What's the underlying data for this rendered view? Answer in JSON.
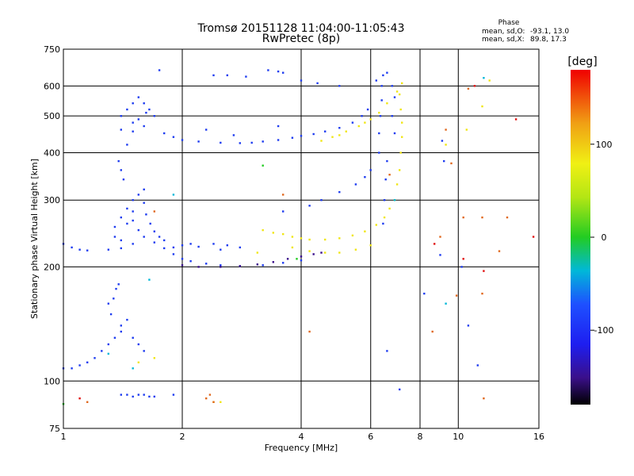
{
  "chart_data": {
    "type": "scatter",
    "title": "Tromsø 20151128 11:04:00-11:05:43",
    "subtitle": "RwPretec (8p)",
    "phase_info": {
      "heading": "Phase",
      "line_o_label": "mean, sd,O:",
      "line_o_values": "-93.1, 13.0",
      "line_x_label": "mean, sd,X:",
      "line_x_values": "89.8, 17.3"
    },
    "xlabel": "Frequency [MHz]",
    "ylabel": "Stationary phase Virtual Height [km]",
    "x_scale": "log",
    "y_scale": "log",
    "xlim": [
      1,
      16
    ],
    "ylim": [
      75,
      750
    ],
    "x_ticks": [
      1,
      2,
      4,
      6,
      8,
      10,
      16
    ],
    "x_tick_labels": [
      "1",
      "2",
      "4",
      "6",
      "8",
      "10",
      "16"
    ],
    "y_ticks": [
      75,
      100,
      200,
      300,
      400,
      500,
      600,
      750
    ],
    "y_tick_labels": [
      "75",
      "100",
      "200",
      "300",
      "400",
      "500",
      "600",
      "750"
    ],
    "grid": true,
    "colorbar": {
      "label": "[deg]",
      "range": [
        -180,
        180
      ],
      "ticks": [
        100,
        0,
        -100
      ],
      "tick_labels": [
        "100",
        "0",
        "-100"
      ]
    },
    "series": [
      {
        "color": "#1e3cf0",
        "phase_deg": -100,
        "points": [
          [
            1.0,
            230
          ],
          [
            1.05,
            225
          ],
          [
            1.1,
            222
          ],
          [
            1.15,
            221
          ],
          [
            1.3,
            222
          ],
          [
            1.4,
            224
          ],
          [
            1.5,
            230
          ],
          [
            1.6,
            240
          ],
          [
            1.7,
            232
          ],
          [
            1.8,
            224
          ],
          [
            1.9,
            216
          ],
          [
            2.0,
            210
          ],
          [
            2.1,
            207
          ],
          [
            2.3,
            204
          ],
          [
            2.5,
            202
          ],
          [
            2.8,
            201
          ],
          [
            3.2,
            202
          ],
          [
            3.6,
            205
          ],
          [
            4.0,
            208
          ],
          [
            1.35,
            240
          ],
          [
            1.35,
            255
          ],
          [
            1.4,
            270
          ],
          [
            1.45,
            285
          ],
          [
            1.5,
            300
          ],
          [
            1.55,
            310
          ],
          [
            1.6,
            295
          ],
          [
            1.62,
            275
          ],
          [
            1.66,
            260
          ],
          [
            1.7,
            248
          ],
          [
            1.75,
            240
          ],
          [
            1.8,
            235
          ],
          [
            1.4,
            235
          ],
          [
            1.5,
            265
          ],
          [
            1.55,
            250
          ],
          [
            1.45,
            260
          ],
          [
            1.6,
            320
          ],
          [
            1.5,
            280
          ],
          [
            1.9,
            225
          ],
          [
            2.0,
            228
          ],
          [
            2.1,
            230
          ],
          [
            2.2,
            226
          ],
          [
            2.4,
            230
          ],
          [
            2.6,
            228
          ],
          [
            2.8,
            225
          ],
          [
            2.5,
            222
          ],
          [
            1.4,
            500
          ],
          [
            1.45,
            520
          ],
          [
            1.5,
            540
          ],
          [
            1.55,
            560
          ],
          [
            1.6,
            540
          ],
          [
            1.65,
            520
          ],
          [
            1.7,
            500
          ],
          [
            1.5,
            480
          ],
          [
            1.6,
            470
          ],
          [
            1.4,
            460
          ],
          [
            1.5,
            455
          ],
          [
            1.55,
            490
          ],
          [
            1.62,
            510
          ],
          [
            1.38,
            380
          ],
          [
            1.4,
            360
          ],
          [
            1.42,
            340
          ],
          [
            1.45,
            420
          ],
          [
            1.8,
            450
          ],
          [
            1.9,
            440
          ],
          [
            2.0,
            432
          ],
          [
            2.2,
            428
          ],
          [
            2.5,
            425
          ],
          [
            2.8,
            424
          ],
          [
            3.0,
            425
          ],
          [
            3.2,
            428
          ],
          [
            3.5,
            432
          ],
          [
            3.8,
            438
          ],
          [
            4.0,
            443
          ],
          [
            4.3,
            448
          ],
          [
            4.6,
            455
          ],
          [
            5.0,
            465
          ],
          [
            5.4,
            480
          ],
          [
            5.7,
            500
          ],
          [
            5.9,
            520
          ],
          [
            2.3,
            460
          ],
          [
            2.7,
            445
          ],
          [
            3.5,
            470
          ],
          [
            4.5,
            300
          ],
          [
            5.0,
            315
          ],
          [
            5.5,
            330
          ],
          [
            5.8,
            345
          ],
          [
            6.0,
            360
          ],
          [
            4.2,
            290
          ],
          [
            3.6,
            280
          ],
          [
            6.3,
            400
          ],
          [
            6.3,
            450
          ],
          [
            6.35,
            500
          ],
          [
            6.4,
            550
          ],
          [
            6.4,
            600
          ],
          [
            6.45,
            640
          ],
          [
            6.8,
            600
          ],
          [
            6.9,
            560
          ],
          [
            6.8,
            500
          ],
          [
            6.9,
            450
          ],
          [
            6.6,
            380
          ],
          [
            6.55,
            340
          ],
          [
            6.5,
            300
          ],
          [
            6.45,
            260
          ],
          [
            1.0,
            108
          ],
          [
            1.05,
            108
          ],
          [
            1.1,
            110
          ],
          [
            1.15,
            112
          ],
          [
            1.2,
            115
          ],
          [
            1.25,
            120
          ],
          [
            1.3,
            125
          ],
          [
            1.35,
            130
          ],
          [
            1.4,
            140
          ],
          [
            1.45,
            145
          ],
          [
            1.5,
            130
          ],
          [
            1.55,
            125
          ],
          [
            1.6,
            120
          ],
          [
            1.32,
            150
          ],
          [
            1.34,
            165
          ],
          [
            1.36,
            175
          ],
          [
            1.38,
            180
          ],
          [
            1.3,
            160
          ],
          [
            1.4,
            135
          ],
          [
            1.4,
            92
          ],
          [
            1.45,
            92
          ],
          [
            1.5,
            91
          ],
          [
            1.55,
            92
          ],
          [
            1.6,
            92
          ],
          [
            1.65,
            91
          ],
          [
            1.7,
            91
          ],
          [
            1.9,
            92
          ],
          [
            1.75,
            660
          ],
          [
            2.4,
            640
          ],
          [
            2.6,
            640
          ],
          [
            2.9,
            635
          ],
          [
            3.3,
            660
          ],
          [
            3.5,
            655
          ],
          [
            3.6,
            650
          ],
          [
            4.0,
            620
          ],
          [
            4.4,
            610
          ],
          [
            5.0,
            600
          ],
          [
            6.2,
            620
          ],
          [
            6.6,
            650
          ],
          [
            6.6,
            120
          ],
          [
            7.1,
            95
          ],
          [
            8.2,
            170
          ],
          [
            9.0,
            215
          ],
          [
            9.1,
            430
          ],
          [
            9.2,
            380
          ],
          [
            10.2,
            200
          ],
          [
            11.2,
            110
          ],
          [
            10.6,
            140
          ]
        ]
      },
      {
        "color": "#3a0f8a",
        "phase_deg": -150,
        "points": [
          [
            2.0,
            202
          ],
          [
            2.2,
            200
          ],
          [
            2.5,
            200
          ],
          [
            2.8,
            201
          ],
          [
            3.1,
            203
          ],
          [
            3.4,
            206
          ],
          [
            3.7,
            210
          ],
          [
            4.0,
            213
          ],
          [
            4.3,
            216
          ],
          [
            4.5,
            218
          ]
        ]
      },
      {
        "color": "#f0e614",
        "phase_deg": 100,
        "points": [
          [
            3.2,
            250
          ],
          [
            3.4,
            246
          ],
          [
            3.6,
            244
          ],
          [
            3.8,
            240
          ],
          [
            4.0,
            238
          ],
          [
            4.2,
            236
          ],
          [
            4.6,
            236
          ],
          [
            5.0,
            238
          ],
          [
            5.4,
            242
          ],
          [
            5.8,
            248
          ],
          [
            6.2,
            258
          ],
          [
            6.5,
            270
          ],
          [
            6.7,
            285
          ],
          [
            6.9,
            300
          ],
          [
            7.0,
            330
          ],
          [
            7.1,
            360
          ],
          [
            7.15,
            400
          ],
          [
            7.2,
            440
          ],
          [
            7.2,
            480
          ],
          [
            7.15,
            520
          ],
          [
            7.1,
            570
          ],
          [
            7.2,
            610
          ],
          [
            3.8,
            225
          ],
          [
            4.2,
            220
          ],
          [
            4.6,
            218
          ],
          [
            5.0,
            218
          ],
          [
            5.5,
            222
          ],
          [
            6.0,
            228
          ],
          [
            4.5,
            430
          ],
          [
            4.8,
            440
          ],
          [
            5.2,
            455
          ],
          [
            5.6,
            470
          ],
          [
            6.0,
            490
          ],
          [
            6.3,
            510
          ],
          [
            6.6,
            540
          ],
          [
            7.0,
            580
          ],
          [
            5.0,
            445
          ],
          [
            5.8,
            480
          ],
          [
            1.7,
            115
          ],
          [
            1.55,
            112
          ],
          [
            2.4,
            88
          ],
          [
            2.5,
            88
          ],
          [
            3.1,
            218
          ],
          [
            9.3,
            420
          ],
          [
            10.5,
            460
          ],
          [
            12.0,
            620
          ],
          [
            11.5,
            530
          ]
        ]
      },
      {
        "color": "#00b8d8",
        "phase_deg": -60,
        "points": [
          [
            1.65,
            185
          ],
          [
            1.9,
            310
          ],
          [
            1.3,
            118
          ],
          [
            1.5,
            108
          ],
          [
            9.3,
            160
          ],
          [
            6.9,
            300
          ],
          [
            11.6,
            630
          ]
        ]
      },
      {
        "color": "#22cc22",
        "phase_deg": 0,
        "points": [
          [
            3.2,
            370
          ],
          [
            3.9,
            210
          ],
          [
            1.0,
            87
          ]
        ]
      },
      {
        "color": "#e0681e",
        "phase_deg": 150,
        "points": [
          [
            1.7,
            280
          ],
          [
            2.3,
            90
          ],
          [
            2.35,
            92
          ],
          [
            2.4,
            88
          ],
          [
            1.15,
            88
          ],
          [
            3.6,
            310
          ],
          [
            4.2,
            135
          ],
          [
            6.7,
            350
          ],
          [
            8.6,
            135
          ],
          [
            9.0,
            240
          ],
          [
            9.3,
            460
          ],
          [
            9.6,
            375
          ],
          [
            9.9,
            168
          ],
          [
            10.3,
            270
          ],
          [
            10.6,
            590
          ],
          [
            11.5,
            270
          ],
          [
            11.6,
            90
          ],
          [
            11.5,
            170
          ],
          [
            12.7,
            220
          ],
          [
            13.3,
            270
          ]
        ]
      },
      {
        "color": "#e01010",
        "phase_deg": 175,
        "points": [
          [
            1.1,
            90
          ],
          [
            8.7,
            230
          ],
          [
            10.3,
            210
          ],
          [
            11.0,
            600
          ],
          [
            15.5,
            240
          ],
          [
            14.0,
            490
          ],
          [
            11.6,
            195
          ]
        ]
      }
    ]
  }
}
